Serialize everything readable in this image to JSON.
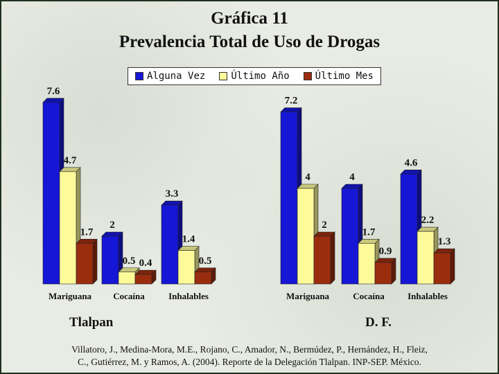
{
  "title_line1": "Gráfica 11",
  "title_line2": "Prevalencia Total de Uso de Drogas",
  "colors": {
    "alguna_vez": "#1616d6",
    "ultimo_anio": "#fdfa9a",
    "ultimo_mes": "#9b2d0f"
  },
  "chart_data": {
    "type": "bar",
    "title": "Prevalencia Total de Uso de Drogas",
    "series_names": [
      "Alguna Vez",
      "Último Año",
      "Último Mes"
    ],
    "legend_position": "top-center",
    "panels": [
      {
        "label": "Tlalpan",
        "categories": [
          "Mariguana",
          "Cocaína",
          "Inhalables"
        ],
        "series": [
          {
            "name": "Alguna Vez",
            "values": [
              7.6,
              2,
              3.3
            ],
            "labels": [
              "7.6",
              "2",
              "3.3"
            ]
          },
          {
            "name": "Último Año",
            "values": [
              4.7,
              0.5,
              1.4
            ],
            "labels": [
              "4.7",
              "0.5",
              "1.4"
            ]
          },
          {
            "name": "Último Mes",
            "values": [
              1.7,
              0.4,
              0.5
            ],
            "labels": [
              "1.7",
              "0.4",
              "0.5"
            ]
          }
        ]
      },
      {
        "label": "D. F.",
        "categories": [
          "Mariguana",
          "Cocaína",
          "Inhalables"
        ],
        "series": [
          {
            "name": "Alguna Vez",
            "values": [
              7.2,
              4,
              4.6
            ],
            "labels": [
              "7.2",
              "4",
              "4.6"
            ]
          },
          {
            "name": "Último Año",
            "values": [
              4,
              1.7,
              2.2
            ],
            "labels": [
              "4",
              "1.7",
              "2.2"
            ]
          },
          {
            "name": "Último Mes",
            "values": [
              2,
              0.9,
              1.3
            ],
            "labels": [
              "2",
              "0.9",
              "1.3"
            ]
          }
        ]
      }
    ]
  },
  "source_line1": "Villatoro, J., Medina-Mora, M.E., Rojano, C., Amador, N., Bermúdez, P., Hernández, H., Fleiz,",
  "source_line2": "C., Gutiérrez, M. y Ramos, A. (2004). Reporte de la Delegación Tlalpan. INP-SEP. México."
}
